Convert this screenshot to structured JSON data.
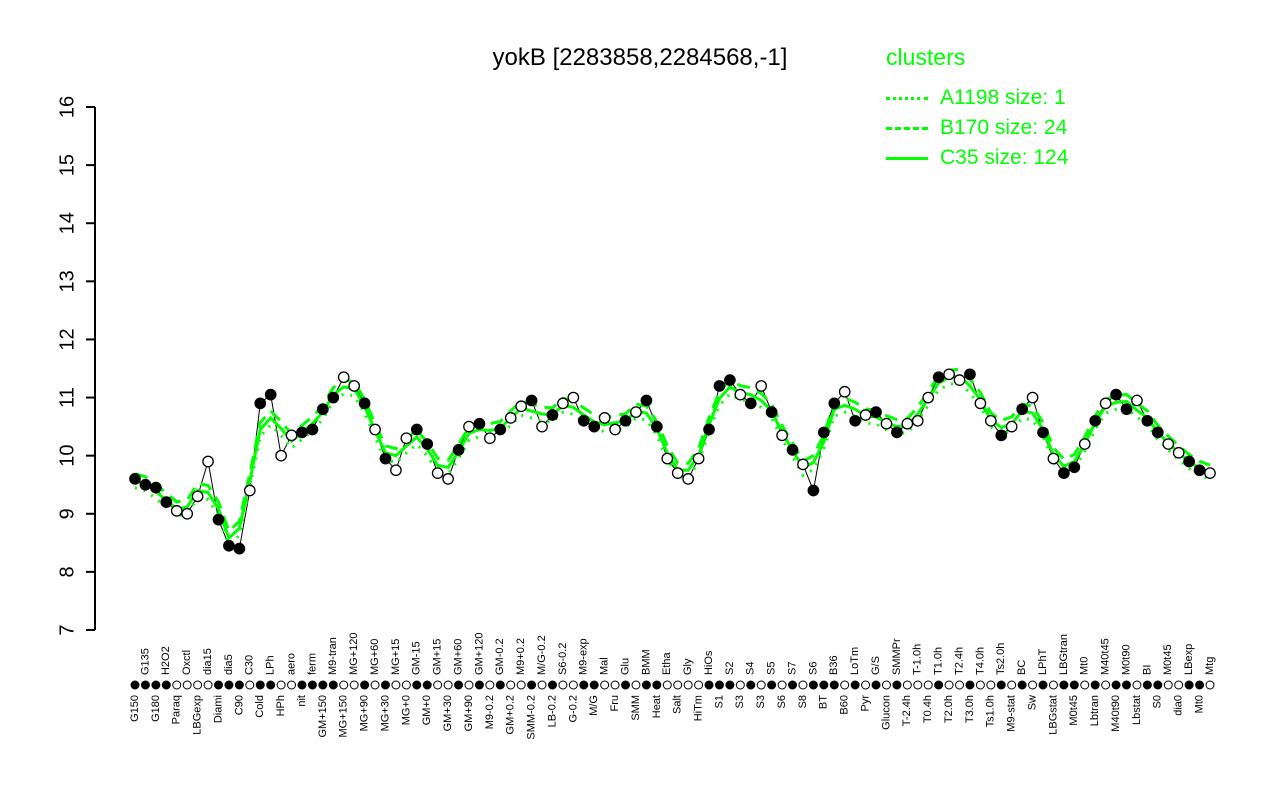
{
  "title": "yokB [2283858,2284568,-1]",
  "legend": {
    "title": "clusters",
    "color": "#00FF00",
    "entries": [
      {
        "label": "A1198 size: 1",
        "name": "A1198",
        "size": 1,
        "style": "dotted"
      },
      {
        "label": "B170 size: 24",
        "name": "B170",
        "size": 24,
        "style": "dashed"
      },
      {
        "label": "C35 size: 124",
        "name": "C35",
        "size": 124,
        "style": "solid"
      }
    ]
  },
  "chart_data": {
    "type": "scatter",
    "title": "yokB [2283858,2284568,-1]",
    "ylabel": "",
    "xlabel": "",
    "ylim": [
      7,
      16
    ],
    "yticks": [
      7,
      8,
      9,
      10,
      11,
      12,
      13,
      14,
      15,
      16
    ],
    "grid": false,
    "legend_position": "top-right",
    "point_color": "#000000",
    "line_color": "#00FF00",
    "categories": [
      "G150",
      "G135",
      "G180",
      "H2O2",
      "Paraq",
      "Oxctl",
      "LBGexp",
      "dia15",
      "Diami",
      "dia5",
      "C90",
      "C30",
      "Cold",
      "LPh",
      "HPh",
      "aero",
      "nit",
      "ferm",
      "GM+150",
      "M9-tran",
      "MG+150",
      "MG+120",
      "MG+90",
      "MG+60",
      "MG+30",
      "MG+15",
      "MG+0",
      "GM-15",
      "GM+0",
      "GM+15",
      "GM+30",
      "GM+60",
      "GM+90",
      "GM+120",
      "M9-0.2",
      "GM-0.2",
      "GM+0.2",
      "M9+0.2",
      "SMM-0.2",
      "M/G-0.2",
      "LB-0.2",
      "S6-0.2",
      "G-0.2",
      "M9-exp",
      "M/G",
      "Mal",
      "Fru",
      "Glu",
      "SMM",
      "BMM",
      "Heat",
      "Etha",
      "Salt",
      "Gly",
      "HiTm",
      "HiOs",
      "S1",
      "S2",
      "S3",
      "S4",
      "S3",
      "S5",
      "S6",
      "S7",
      "S8",
      "S6",
      "BT",
      "B36",
      "B60",
      "LoTm",
      "Pyr",
      "G/S",
      "Glucon",
      "SMMPr",
      "T-2.4h",
      "T-1.0h",
      "T0.4h",
      "T1.0h",
      "T2.0h",
      "T2.4h",
      "T3.0h",
      "T4.0h",
      "Ts1.0h",
      "Ts2.0h",
      "M9-stat",
      "BC",
      "Sw",
      "LPhT",
      "LBGstat",
      "LBGtran",
      "M0t45",
      "Mt0",
      "Lbtran",
      "M40t45",
      "M40t90",
      "M0t90",
      "Lbstat",
      "BI",
      "S0",
      "M0t45",
      "dia0",
      "LBexp",
      "Mt0",
      "Mtg"
    ],
    "values": [
      9.6,
      9.5,
      9.45,
      9.2,
      9.05,
      9.0,
      9.3,
      9.9,
      8.9,
      8.45,
      8.4,
      9.4,
      10.9,
      11.05,
      10.0,
      10.35,
      10.4,
      10.45,
      10.8,
      11.0,
      11.35,
      11.2,
      10.9,
      10.45,
      9.95,
      9.75,
      10.3,
      10.45,
      10.2,
      9.7,
      9.6,
      10.1,
      10.5,
      10.55,
      10.3,
      10.45,
      10.65,
      10.85,
      10.95,
      10.5,
      10.7,
      10.9,
      11.0,
      10.6,
      10.5,
      10.65,
      10.45,
      10.6,
      10.75,
      10.95,
      10.5,
      9.95,
      9.7,
      9.6,
      9.95,
      10.45,
      11.2,
      11.3,
      11.05,
      10.9,
      11.2,
      10.75,
      10.35,
      10.1,
      9.85,
      9.4,
      10.4,
      10.9,
      11.1,
      10.6,
      10.7,
      10.75,
      10.55,
      10.4,
      10.55,
      10.6,
      11.0,
      11.35,
      11.4,
      11.3,
      11.4,
      10.9,
      10.6,
      10.35,
      10.5,
      10.8,
      11.0,
      10.4,
      9.95,
      9.7,
      9.8,
      10.2,
      10.6,
      10.9,
      11.05,
      10.8,
      10.95,
      10.6,
      10.4,
      10.2,
      10.05,
      9.9,
      9.75,
      9.7
    ],
    "markers": [
      "filled",
      "filled",
      "filled",
      "filled",
      "open",
      "open",
      "open",
      "open",
      "filled",
      "filled",
      "filled",
      "open",
      "filled",
      "filled",
      "open",
      "open",
      "filled",
      "filled",
      "filled",
      "filled",
      "open",
      "open",
      "filled",
      "open",
      "filled",
      "open",
      "open",
      "filled",
      "filled",
      "open",
      "open",
      "filled",
      "open",
      "filled",
      "open",
      "filled",
      "open",
      "open",
      "filled",
      "open",
      "filled",
      "open",
      "open",
      "filled",
      "filled",
      "open",
      "open",
      "filled",
      "open",
      "filled",
      "filled",
      "open",
      "open",
      "open",
      "open",
      "filled",
      "filled",
      "filled",
      "open",
      "filled",
      "open",
      "filled",
      "open",
      "filled",
      "open",
      "filled",
      "filled",
      "filled",
      "open",
      "filled",
      "open",
      "filled",
      "open",
      "filled",
      "open",
      "open",
      "open",
      "filled",
      "open",
      "open",
      "filled",
      "open",
      "open",
      "filled",
      "open",
      "filled",
      "open",
      "filled",
      "open",
      "filled",
      "filled",
      "open",
      "filled",
      "open",
      "filled",
      "filled",
      "open",
      "filled",
      "filled",
      "open",
      "open",
      "filled",
      "filled",
      "open"
    ],
    "series": [
      {
        "name": "A1198",
        "size": 1,
        "style": "dotted"
      },
      {
        "name": "B170",
        "size": 24,
        "style": "dashed"
      },
      {
        "name": "C35",
        "size": 124,
        "style": "solid"
      }
    ]
  }
}
